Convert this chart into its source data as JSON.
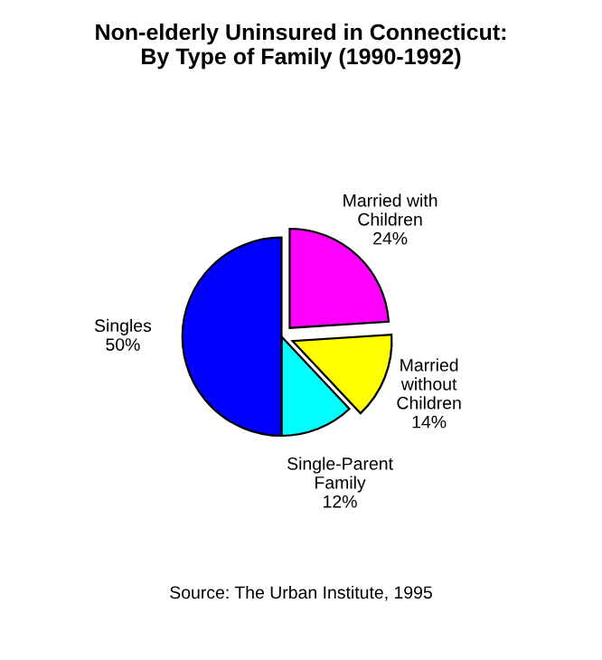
{
  "chart_data": {
    "type": "pie",
    "title": "Non-elderly Uninsured in Connecticut:\nBy Type of Family (1990-1992)",
    "categories": [
      "Married with\nChildren",
      "Married\nwithout\nChildren",
      "Single-Parent\nFamily",
      "Singles"
    ],
    "values": [
      24,
      14,
      12,
      50
    ],
    "colors": [
      "#ff00ff",
      "#ffff00",
      "#00ffff",
      "#0000ff"
    ],
    "value_labels": [
      "24%",
      "14%",
      "12%",
      "50%"
    ],
    "annotations": [
      "Source: The Urban Institute, 1995"
    ]
  }
}
